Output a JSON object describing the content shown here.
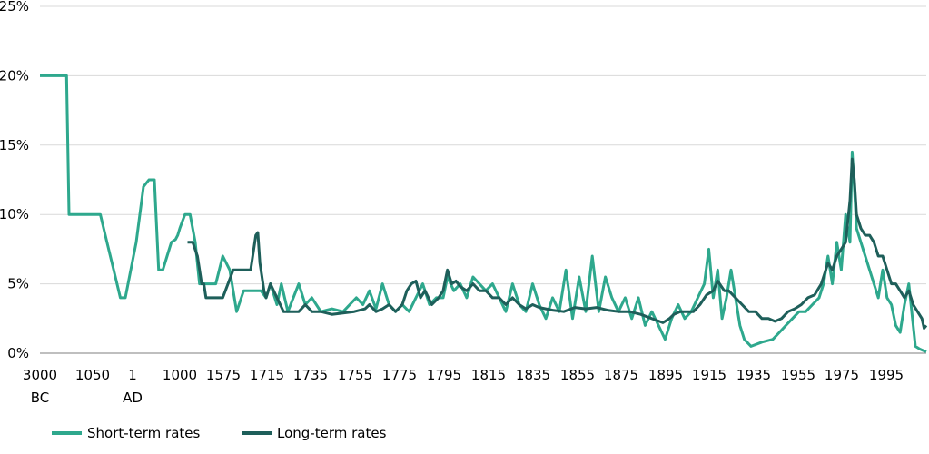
{
  "chart_data": {
    "type": "line",
    "title": "",
    "xlabel": "",
    "ylabel": "",
    "ylim": [
      0,
      25
    ],
    "y_ticks": [
      0,
      5,
      10,
      15,
      20,
      25
    ],
    "y_tick_labels": [
      "0%",
      "5%",
      "10%",
      "15%",
      "20%",
      "25%"
    ],
    "x_tick_labels": [
      {
        "line1": "3000",
        "line2": "BC"
      },
      {
        "line1": "1050",
        "line2": ""
      },
      {
        "line1": "1",
        "line2": "AD"
      },
      {
        "line1": "1000",
        "line2": ""
      },
      {
        "line1": "1575",
        "line2": ""
      },
      {
        "line1": "1715",
        "line2": ""
      },
      {
        "line1": "1735",
        "line2": ""
      },
      {
        "line1": "1755",
        "line2": ""
      },
      {
        "line1": "1775",
        "line2": ""
      },
      {
        "line1": "1795",
        "line2": ""
      },
      {
        "line1": "1815",
        "line2": ""
      },
      {
        "line1": "1835",
        "line2": ""
      },
      {
        "line1": "1855",
        "line2": ""
      },
      {
        "line1": "1875",
        "line2": ""
      },
      {
        "line1": "1895",
        "line2": ""
      },
      {
        "line1": "1915",
        "line2": ""
      },
      {
        "line1": "1935",
        "line2": ""
      },
      {
        "line1": "1955",
        "line2": ""
      },
      {
        "line1": "1975",
        "line2": ""
      },
      {
        "line1": "1995",
        "line2": ""
      }
    ],
    "grid": true,
    "legend_position": "bottom-left",
    "series": [
      {
        "name": "Short-term rates",
        "color": "#2ea88d",
        "points": [
          [
            -3000,
            20
          ],
          [
            -1900,
            20
          ],
          [
            -1800,
            10
          ],
          [
            -900,
            10
          ],
          [
            -700,
            8
          ],
          [
            -500,
            6
          ],
          [
            -300,
            4
          ],
          [
            -150,
            4
          ],
          [
            100,
            8
          ],
          [
            200,
            12
          ],
          [
            300,
            12.5
          ],
          [
            400,
            12.5
          ],
          [
            500,
            6
          ],
          [
            600,
            6
          ],
          [
            700,
            7
          ],
          [
            800,
            8
          ],
          [
            900,
            8.2
          ],
          [
            950,
            8.5
          ],
          [
            1000,
            9
          ],
          [
            1050,
            9.5
          ],
          [
            1100,
            10
          ],
          [
            1200,
            10
          ],
          [
            1300,
            8
          ],
          [
            1400,
            5
          ],
          [
            1500,
            5
          ],
          [
            1575,
            5
          ],
          [
            1600,
            5
          ],
          [
            1620,
            7
          ],
          [
            1640,
            6
          ],
          [
            1660,
            3
          ],
          [
            1680,
            4.5
          ],
          [
            1700,
            4.5
          ],
          [
            1710,
            4.5
          ],
          [
            1715,
            4
          ],
          [
            1717,
            5
          ],
          [
            1720,
            3.5
          ],
          [
            1722,
            5
          ],
          [
            1725,
            3
          ],
          [
            1730,
            5
          ],
          [
            1733,
            3.5
          ],
          [
            1736,
            4
          ],
          [
            1740,
            3
          ],
          [
            1745,
            3.2
          ],
          [
            1750,
            3
          ],
          [
            1753,
            3.5
          ],
          [
            1756,
            4
          ],
          [
            1759,
            3.5
          ],
          [
            1762,
            4.5
          ],
          [
            1765,
            3.2
          ],
          [
            1768,
            5
          ],
          [
            1771,
            3.5
          ],
          [
            1774,
            3
          ],
          [
            1777,
            3.5
          ],
          [
            1780,
            3
          ],
          [
            1783,
            4
          ],
          [
            1786,
            5
          ],
          [
            1789,
            3.5
          ],
          [
            1792,
            4
          ],
          [
            1795,
            4
          ],
          [
            1797,
            5.5
          ],
          [
            1800,
            4.5
          ],
          [
            1803,
            5
          ],
          [
            1806,
            4
          ],
          [
            1809,
            5.5
          ],
          [
            1812,
            5
          ],
          [
            1815,
            4.5
          ],
          [
            1818,
            5
          ],
          [
            1821,
            4
          ],
          [
            1824,
            3
          ],
          [
            1827,
            5
          ],
          [
            1830,
            3.5
          ],
          [
            1833,
            3
          ],
          [
            1836,
            5
          ],
          [
            1839,
            3.5
          ],
          [
            1842,
            2.5
          ],
          [
            1845,
            4
          ],
          [
            1848,
            3
          ],
          [
            1851,
            6
          ],
          [
            1854,
            2.5
          ],
          [
            1857,
            5.5
          ],
          [
            1860,
            3
          ],
          [
            1863,
            7
          ],
          [
            1866,
            3
          ],
          [
            1869,
            5.5
          ],
          [
            1872,
            4
          ],
          [
            1875,
            3
          ],
          [
            1878,
            4
          ],
          [
            1881,
            2.5
          ],
          [
            1884,
            4
          ],
          [
            1887,
            2
          ],
          [
            1890,
            3
          ],
          [
            1893,
            2
          ],
          [
            1896,
            1
          ],
          [
            1899,
            2.5
          ],
          [
            1902,
            3.5
          ],
          [
            1905,
            2.5
          ],
          [
            1908,
            3
          ],
          [
            1911,
            4
          ],
          [
            1914,
            5
          ],
          [
            1916,
            7.5
          ],
          [
            1918,
            4
          ],
          [
            1920,
            6
          ],
          [
            1922,
            2.5
          ],
          [
            1924,
            4
          ],
          [
            1926,
            6
          ],
          [
            1928,
            4
          ],
          [
            1930,
            2
          ],
          [
            1932,
            1
          ],
          [
            1935,
            0.5
          ],
          [
            1940,
            0.8
          ],
          [
            1945,
            1
          ],
          [
            1948,
            1.5
          ],
          [
            1951,
            2
          ],
          [
            1954,
            2.5
          ],
          [
            1957,
            3
          ],
          [
            1960,
            3
          ],
          [
            1963,
            3.5
          ],
          [
            1966,
            4
          ],
          [
            1968,
            5
          ],
          [
            1970,
            7
          ],
          [
            1972,
            5
          ],
          [
            1974,
            8
          ],
          [
            1976,
            6
          ],
          [
            1978,
            10
          ],
          [
            1980,
            8
          ],
          [
            1981,
            14.5
          ],
          [
            1982,
            12
          ],
          [
            1983,
            9
          ],
          [
            1985,
            8
          ],
          [
            1987,
            7
          ],
          [
            1989,
            6
          ],
          [
            1991,
            5
          ],
          [
            1993,
            4
          ],
          [
            1995,
            6
          ],
          [
            1997,
            4
          ],
          [
            1999,
            3.5
          ],
          [
            2001,
            2
          ],
          [
            2003,
            1.5
          ],
          [
            2005,
            3.5
          ],
          [
            2007,
            5
          ],
          [
            2009,
            2
          ],
          [
            2010,
            0.5
          ],
          [
            2012,
            0.3
          ],
          [
            2015,
            0.1
          ]
        ]
      },
      {
        "name": "Long-term rates",
        "color": "#1e5f5a",
        "points": [
          [
            1150,
            8
          ],
          [
            1250,
            8
          ],
          [
            1350,
            7
          ],
          [
            1450,
            5
          ],
          [
            1500,
            5
          ],
          [
            1550,
            4
          ],
          [
            1575,
            4
          ],
          [
            1620,
            4
          ],
          [
            1650,
            6
          ],
          [
            1690,
            6
          ],
          [
            1700,
            6
          ],
          [
            1702,
            7
          ],
          [
            1705,
            8.5
          ],
          [
            1707,
            8.7
          ],
          [
            1709,
            6.5
          ],
          [
            1711,
            5.5
          ],
          [
            1713,
            4.5
          ],
          [
            1715,
            4
          ],
          [
            1717,
            5
          ],
          [
            1720,
            4
          ],
          [
            1723,
            3
          ],
          [
            1727,
            3
          ],
          [
            1730,
            3
          ],
          [
            1733,
            3.5
          ],
          [
            1736,
            3
          ],
          [
            1740,
            3
          ],
          [
            1745,
            2.8
          ],
          [
            1750,
            2.9
          ],
          [
            1755,
            3
          ],
          [
            1760,
            3.2
          ],
          [
            1762,
            3.5
          ],
          [
            1765,
            3
          ],
          [
            1768,
            3.2
          ],
          [
            1771,
            3.5
          ],
          [
            1774,
            3
          ],
          [
            1777,
            3.5
          ],
          [
            1779,
            4.5
          ],
          [
            1781,
            5
          ],
          [
            1783,
            5.2
          ],
          [
            1785,
            4
          ],
          [
            1787,
            4.5
          ],
          [
            1790,
            3.5
          ],
          [
            1793,
            4
          ],
          [
            1795,
            4.5
          ],
          [
            1797,
            6
          ],
          [
            1799,
            5
          ],
          [
            1801,
            5.2
          ],
          [
            1803,
            4.8
          ],
          [
            1806,
            4.5
          ],
          [
            1809,
            5
          ],
          [
            1812,
            4.5
          ],
          [
            1815,
            4.5
          ],
          [
            1818,
            4
          ],
          [
            1821,
            4
          ],
          [
            1824,
            3.5
          ],
          [
            1827,
            4
          ],
          [
            1830,
            3.5
          ],
          [
            1833,
            3.2
          ],
          [
            1836,
            3.5
          ],
          [
            1839,
            3.3
          ],
          [
            1842,
            3.2
          ],
          [
            1845,
            3.1
          ],
          [
            1850,
            3
          ],
          [
            1855,
            3.3
          ],
          [
            1860,
            3.2
          ],
          [
            1865,
            3.3
          ],
          [
            1870,
            3.1
          ],
          [
            1875,
            3
          ],
          [
            1880,
            3
          ],
          [
            1885,
            2.8
          ],
          [
            1890,
            2.5
          ],
          [
            1895,
            2.2
          ],
          [
            1898,
            2.5
          ],
          [
            1900,
            2.8
          ],
          [
            1903,
            3
          ],
          [
            1906,
            3
          ],
          [
            1909,
            3
          ],
          [
            1912,
            3.5
          ],
          [
            1915,
            4.2
          ],
          [
            1918,
            4.5
          ],
          [
            1920,
            5.2
          ],
          [
            1923,
            4.5
          ],
          [
            1925,
            4.5
          ],
          [
            1928,
            4
          ],
          [
            1931,
            3.5
          ],
          [
            1934,
            3
          ],
          [
            1937,
            3
          ],
          [
            1940,
            2.5
          ],
          [
            1943,
            2.5
          ],
          [
            1946,
            2.3
          ],
          [
            1949,
            2.5
          ],
          [
            1952,
            3
          ],
          [
            1955,
            3.2
          ],
          [
            1958,
            3.5
          ],
          [
            1961,
            4
          ],
          [
            1964,
            4.2
          ],
          [
            1967,
            5
          ],
          [
            1970,
            6.5
          ],
          [
            1972,
            6
          ],
          [
            1974,
            7
          ],
          [
            1976,
            7.5
          ],
          [
            1978,
            8
          ],
          [
            1980,
            11
          ],
          [
            1981,
            14
          ],
          [
            1982,
            12.5
          ],
          [
            1983,
            10
          ],
          [
            1985,
            9
          ],
          [
            1987,
            8.5
          ],
          [
            1989,
            8.5
          ],
          [
            1991,
            8
          ],
          [
            1993,
            7
          ],
          [
            1995,
            7
          ],
          [
            1997,
            6
          ],
          [
            1999,
            5
          ],
          [
            2001,
            5
          ],
          [
            2003,
            4.5
          ],
          [
            2005,
            4
          ],
          [
            2007,
            4.5
          ],
          [
            2009,
            3.5
          ],
          [
            2011,
            3
          ],
          [
            2013,
            2.5
          ],
          [
            2014,
            1.8
          ],
          [
            2015,
            2
          ]
        ]
      }
    ]
  }
}
